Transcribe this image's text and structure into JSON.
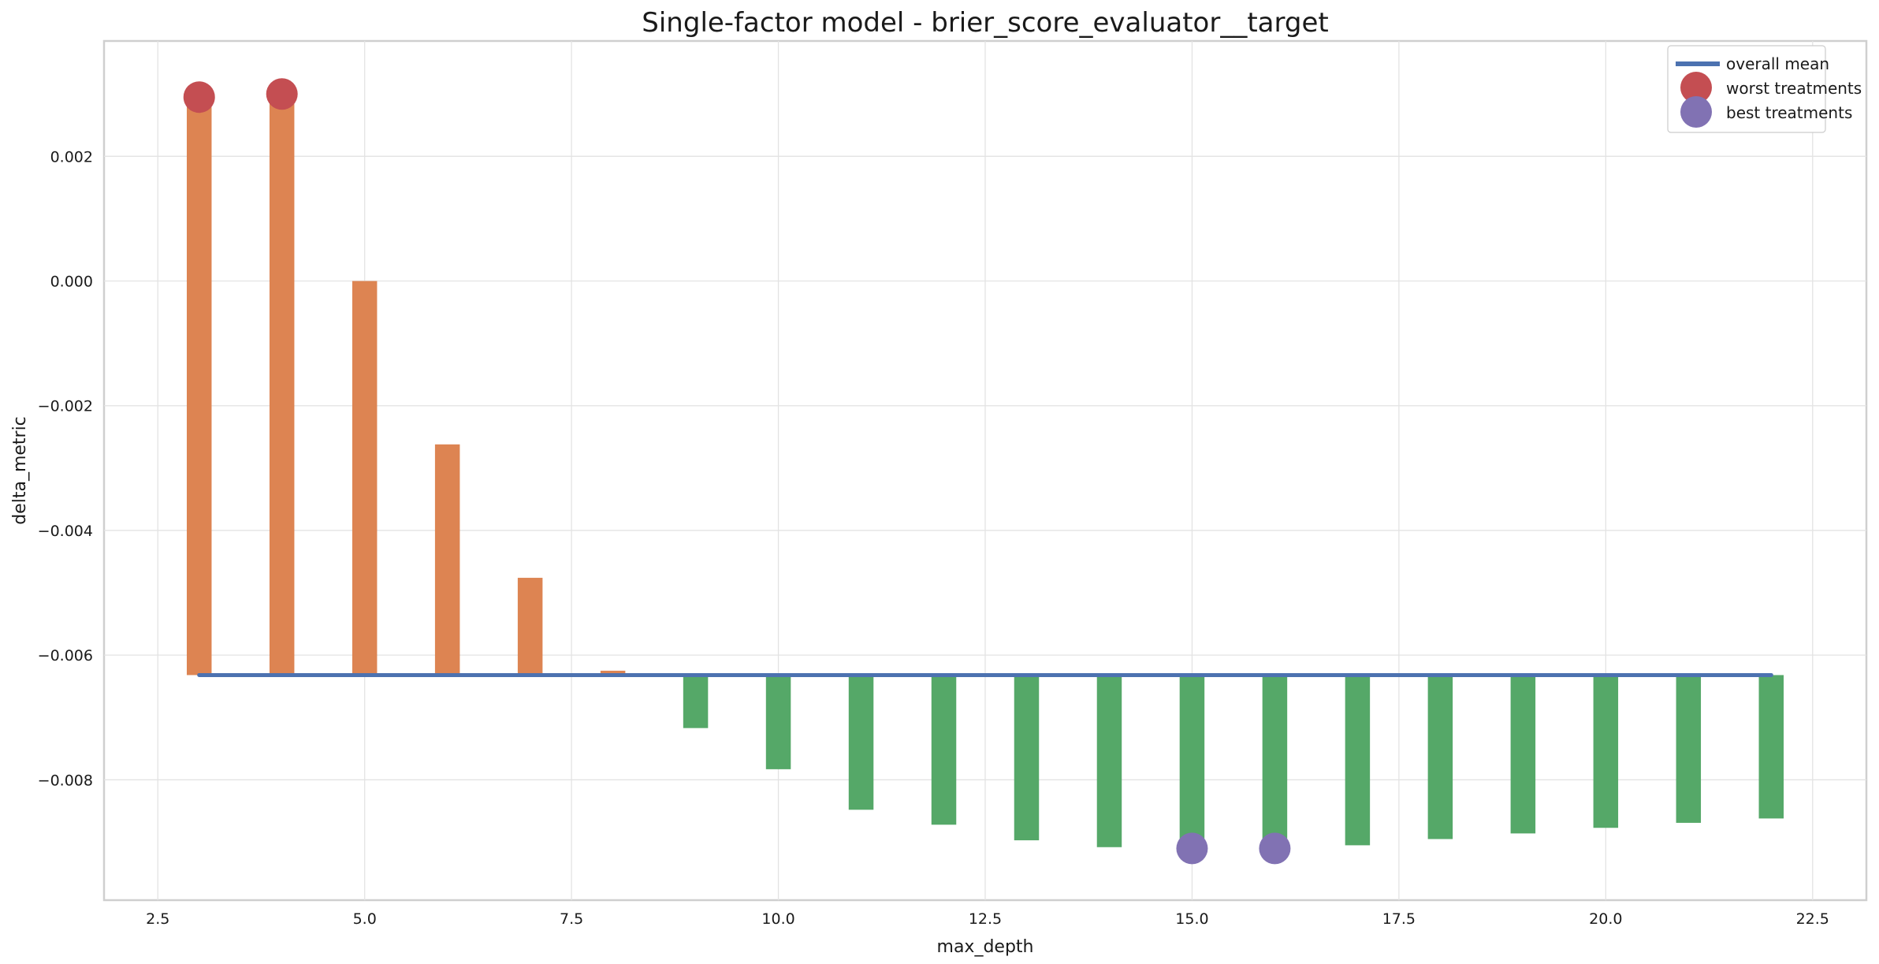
{
  "chart_data": {
    "type": "bar",
    "title": "Single-factor model - brier_score_evaluator__target",
    "xlabel": "max_depth",
    "ylabel": "delta_metric",
    "xlim": [
      1.85,
      23.15
    ],
    "ylim": [
      -0.00993,
      0.00385
    ],
    "x_ticks": [
      2.5,
      5.0,
      7.5,
      10.0,
      12.5,
      15.0,
      17.5,
      20.0,
      22.5
    ],
    "x_tick_labels": [
      "2.5",
      "5.0",
      "7.5",
      "10.0",
      "12.5",
      "15.0",
      "17.5",
      "20.0",
      "22.5"
    ],
    "y_ticks": [
      0.002,
      0.0,
      -0.002,
      -0.004,
      -0.006,
      -0.008
    ],
    "y_tick_labels": [
      "0.002",
      "0.000",
      "−0.002",
      "−0.004",
      "−0.006",
      "−0.008"
    ],
    "grid": true,
    "baseline": -0.00632,
    "x": [
      3,
      4,
      5,
      6,
      7,
      8,
      9,
      10,
      11,
      12,
      13,
      14,
      15,
      16,
      17,
      18,
      19,
      20,
      21,
      22
    ],
    "values": [
      0.00295,
      0.003,
      0.0,
      -0.00262,
      -0.00476,
      -0.00625,
      -0.00717,
      -0.00783,
      -0.00848,
      -0.00872,
      -0.00897,
      -0.00908,
      -0.0091,
      -0.0091,
      -0.00905,
      -0.00895,
      -0.00886,
      -0.00877,
      -0.00869,
      -0.00862
    ],
    "colors": {
      "above_mean": "#dd8452",
      "below_mean": "#55a868",
      "mean_line": "#4c72b0",
      "worst": "#c44e52",
      "best": "#8172b3"
    },
    "mean_line": {
      "name": "overall mean",
      "value": -0.00632,
      "x_range": [
        3,
        22
      ]
    },
    "worst_treatments": {
      "name": "worst treatments",
      "x": [
        3,
        4
      ],
      "y": [
        0.00295,
        0.003
      ]
    },
    "best_treatments": {
      "name": "best treatments",
      "x": [
        15,
        16
      ],
      "y": [
        -0.0091,
        -0.0091
      ]
    },
    "legend": {
      "position": "top-right",
      "entries": [
        "overall mean",
        "worst treatments",
        "best treatments"
      ]
    }
  }
}
